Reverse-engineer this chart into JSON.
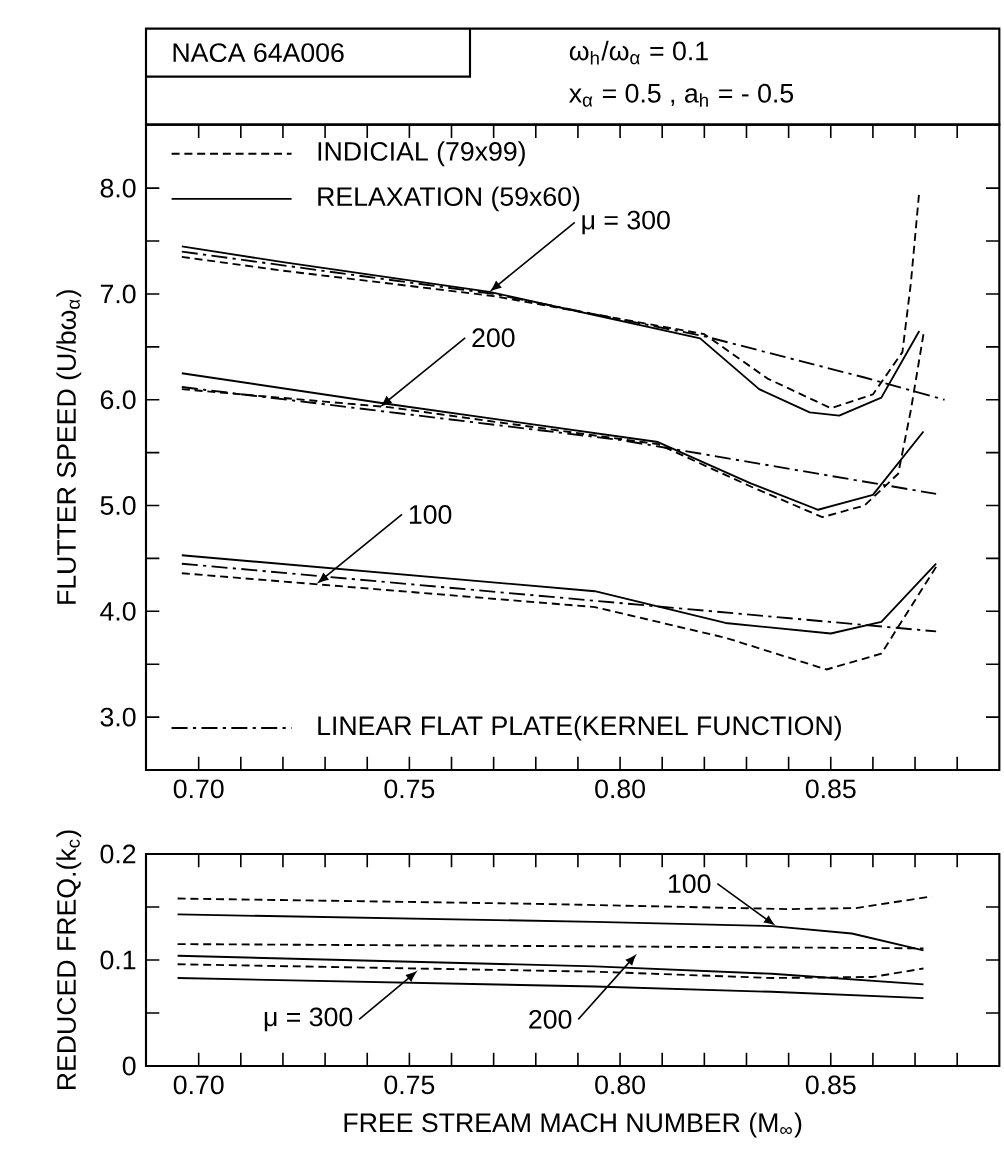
{
  "chart_data": [
    {
      "type": "line",
      "title": "NACA 64A006",
      "ylabel": "FLUTTER SPEED (U/bω$_{α}$)",
      "legend": "top left",
      "annotations": [
        "ω$_{h}$/ω$_{α}$ = 0.1",
        "x$_{α}$ = 0.5 , a$_{h}$ = - 0.5",
        {
          "text": "μ = 300",
          "x": 0.769,
          "y": 7.02
        },
        {
          "text": "200",
          "x": 0.743,
          "y": 5.93
        },
        {
          "text": "100",
          "x": 0.728,
          "y": 4.26
        }
      ],
      "xlim": [
        0.6875,
        0.89
      ],
      "ylim": [
        2.5,
        8.6
      ],
      "xticks": [
        {
          "value": 0.7,
          "label": "0.70"
        },
        {
          "value": 0.71,
          "label": null
        },
        {
          "value": 0.72,
          "label": null
        },
        {
          "value": 0.73,
          "label": null
        },
        {
          "value": 0.74,
          "label": null
        },
        {
          "value": 0.75,
          "label": "0.75"
        },
        {
          "value": 0.76,
          "label": null
        },
        {
          "value": 0.77,
          "label": null
        },
        {
          "value": 0.78,
          "label": null
        },
        {
          "value": 0.79,
          "label": null
        },
        {
          "value": 0.8,
          "label": "0.80"
        },
        {
          "value": 0.81,
          "label": null
        },
        {
          "value": 0.82,
          "label": null
        },
        {
          "value": 0.83,
          "label": null
        },
        {
          "value": 0.84,
          "label": null
        },
        {
          "value": 0.85,
          "label": "0.85"
        },
        {
          "value": 0.86,
          "label": null
        },
        {
          "value": 0.87,
          "label": null
        },
        {
          "value": 0.88,
          "label": null
        }
      ],
      "yticks": [
        {
          "value": 3,
          "label": "3.0"
        },
        {
          "value": 3.5,
          "label": null
        },
        {
          "value": 4,
          "label": "4.0"
        },
        {
          "value": 4.5,
          "label": null
        },
        {
          "value": 5,
          "label": "5.0"
        },
        {
          "value": 5.5,
          "label": null
        },
        {
          "value": 6,
          "label": "6.0"
        },
        {
          "value": 6.5,
          "label": null
        },
        {
          "value": 7,
          "label": "7.0"
        },
        {
          "value": 7.5,
          "label": null
        },
        {
          "value": 8,
          "label": "8.0"
        }
      ],
      "series": [
        {
          "name": "INDICIAL (79x99)",
          "color": "#000000",
          "line_style": "dashed",
          "x": [
            0.696,
            0.72,
            0.77,
            0.82,
            0.835,
            0.85,
            0.86,
            0.867,
            0.869,
            0.871
          ],
          "values": [
            7.35,
            7.22,
            6.98,
            6.62,
            6.2,
            5.92,
            6.05,
            6.45,
            7.1,
            7.97
          ]
        },
        {
          "name": "RELAXATION (59x60)",
          "color": "#000000",
          "line_style": "solid",
          "x": [
            0.696,
            0.72,
            0.769,
            0.819,
            0.833,
            0.845,
            0.852,
            0.862,
            0.871
          ],
          "values": [
            7.45,
            7.3,
            7.02,
            6.58,
            6.1,
            5.88,
            5.85,
            6.02,
            6.65
          ]
        },
        {
          "name": "LINEAR FLAT PLATE(KERNEL FUNCTION)",
          "color": "#000000",
          "line_style": "dashdot",
          "x": [
            0.696,
            0.77,
            0.82,
            0.858,
            0.877
          ],
          "values": [
            7.4,
            7.0,
            6.6,
            6.21,
            6.0
          ]
        },
        {
          "color": "#000000",
          "line_style": "dashed",
          "x": [
            0.696,
            0.745,
            0.809,
            0.831,
            0.848,
            0.858,
            0.866,
            0.869,
            0.872
          ],
          "values": [
            6.1,
            5.93,
            5.58,
            5.18,
            4.89,
            5.0,
            5.3,
            5.9,
            6.62
          ]
        },
        {
          "color": "#000000",
          "line_style": "solid",
          "x": [
            0.696,
            0.745,
            0.809,
            0.831,
            0.847,
            0.86,
            0.872
          ],
          "values": [
            6.25,
            5.96,
            5.6,
            5.21,
            4.96,
            5.1,
            5.7
          ]
        },
        {
          "color": "#000000",
          "line_style": "dashdot",
          "x": [
            0.696,
            0.8,
            0.875
          ],
          "values": [
            6.12,
            5.62,
            5.11
          ]
        },
        {
          "color": "#000000",
          "line_style": "dashed",
          "x": [
            0.696,
            0.794,
            0.825,
            0.849,
            0.862,
            0.875
          ],
          "values": [
            4.36,
            4.04,
            3.75,
            3.45,
            3.6,
            4.42
          ]
        },
        {
          "color": "#000000",
          "line_style": "solid",
          "x": [
            0.696,
            0.794,
            0.825,
            0.85,
            0.862,
            0.875
          ],
          "values": [
            4.53,
            4.19,
            3.89,
            3.79,
            3.9,
            4.45
          ]
        },
        {
          "color": "#000000",
          "line_style": "dashdot",
          "x": [
            0.696,
            0.875
          ],
          "values": [
            4.45,
            3.81
          ]
        }
      ]
    },
    {
      "type": "line",
      "ylabel": "REDUCED FREQ.(k$_{c}$)",
      "xlabel": "FREE STREAM MACH NUMBER (M$_{∞}$)",
      "annotations": [
        {
          "text": "100",
          "x": 0.837,
          "y": 0.132
        },
        {
          "text": "200",
          "x": 0.804,
          "y": 0.106
        },
        {
          "text": "μ = 300",
          "x": 0.752,
          "y": 0.09
        }
      ],
      "xlim": [
        0.6875,
        0.89
      ],
      "ylim": [
        0,
        0.2
      ],
      "xticks": [
        {
          "value": 0.7,
          "label": "0.70"
        },
        {
          "value": 0.71,
          "label": null
        },
        {
          "value": 0.72,
          "label": null
        },
        {
          "value": 0.73,
          "label": null
        },
        {
          "value": 0.74,
          "label": null
        },
        {
          "value": 0.75,
          "label": "0.75"
        },
        {
          "value": 0.76,
          "label": null
        },
        {
          "value": 0.77,
          "label": null
        },
        {
          "value": 0.78,
          "label": null
        },
        {
          "value": 0.79,
          "label": null
        },
        {
          "value": 0.8,
          "label": "0.80"
        },
        {
          "value": 0.81,
          "label": null
        },
        {
          "value": 0.82,
          "label": null
        },
        {
          "value": 0.83,
          "label": null
        },
        {
          "value": 0.84,
          "label": null
        },
        {
          "value": 0.85,
          "label": "0.85"
        },
        {
          "value": 0.86,
          "label": null
        },
        {
          "value": 0.87,
          "label": null
        },
        {
          "value": 0.88,
          "label": null
        }
      ],
      "yticks": [
        0,
        {
          "value": 0.05,
          "label": null
        },
        0.1,
        {
          "value": 0.15,
          "label": null
        },
        0.2
      ],
      "series": [
        {
          "color": "#000000",
          "line_style": "dashed",
          "x": [
            0.695,
            0.78,
            0.84,
            0.856,
            0.874
          ],
          "values": [
            0.158,
            0.153,
            0.148,
            0.149,
            0.16
          ]
        },
        {
          "color": "#000000",
          "line_style": "solid",
          "x": [
            0.695,
            0.794,
            0.836,
            0.855,
            0.872
          ],
          "values": [
            0.143,
            0.136,
            0.132,
            0.125,
            0.109
          ]
        },
        {
          "color": "#000000",
          "line_style": "dashed",
          "x": [
            0.695,
            0.789,
            0.872
          ],
          "values": [
            0.115,
            0.113,
            0.111
          ]
        },
        {
          "color": "#000000",
          "line_style": "solid",
          "x": [
            0.695,
            0.794,
            0.836,
            0.872
          ],
          "values": [
            0.104,
            0.094,
            0.087,
            0.077
          ]
        },
        {
          "color": "#000000",
          "line_style": "dashed",
          "x": [
            0.695,
            0.794,
            0.836,
            0.86,
            0.872
          ],
          "values": [
            0.096,
            0.089,
            0.083,
            0.084,
            0.092
          ]
        },
        {
          "color": "#000000",
          "line_style": "solid",
          "x": [
            0.695,
            0.794,
            0.836,
            0.872
          ],
          "values": [
            0.083,
            0.075,
            0.07,
            0.064
          ]
        }
      ]
    }
  ]
}
